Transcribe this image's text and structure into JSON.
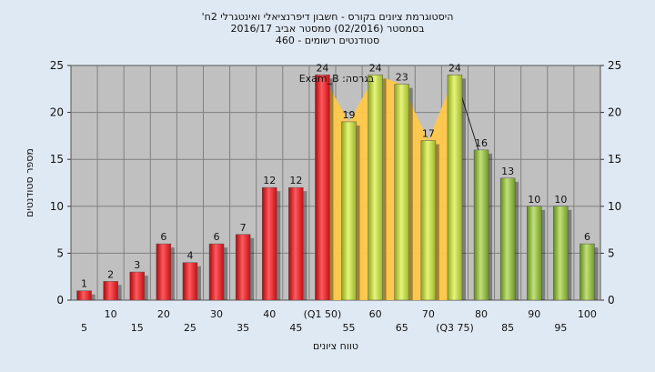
{
  "chart_data": {
    "type": "bar",
    "title_lines": [
      "היסטוגרמת ציונים בקורס - חשבון דיפרנציאלי ואינטגרלי 2ח'",
      "בסמסטר  (02/2016)  סמסטר אביב 2016/17",
      "סטודנטים רשומים - 460"
    ],
    "legend_label": "בגרסה: Exam_B",
    "xlabel": "טווח ציונים",
    "ylabel": "מספר סטודנטים",
    "ylim": [
      0,
      25
    ],
    "yticks": [
      0,
      5,
      10,
      15,
      20,
      25
    ],
    "grid": true,
    "categories": [
      "5",
      "10",
      "15",
      "20",
      "25",
      "30",
      "35",
      "40",
      "45",
      "(Q1 50)",
      "55",
      "60",
      "65",
      "70",
      "(Q3 75)",
      "80",
      "85",
      "90",
      "95",
      "100"
    ],
    "values": [
      1,
      2,
      3,
      6,
      4,
      6,
      7,
      12,
      12,
      24,
      19,
      24,
      23,
      17,
      24,
      16,
      13,
      10,
      10,
      6
    ],
    "colors": {
      "low": "#e0262a",
      "mid": "#b9cf3e",
      "high": "#8fb63a",
      "iqr_band": "#ffc84a",
      "plot_bg": "#c0c0c0",
      "grid": "#808080"
    }
  }
}
